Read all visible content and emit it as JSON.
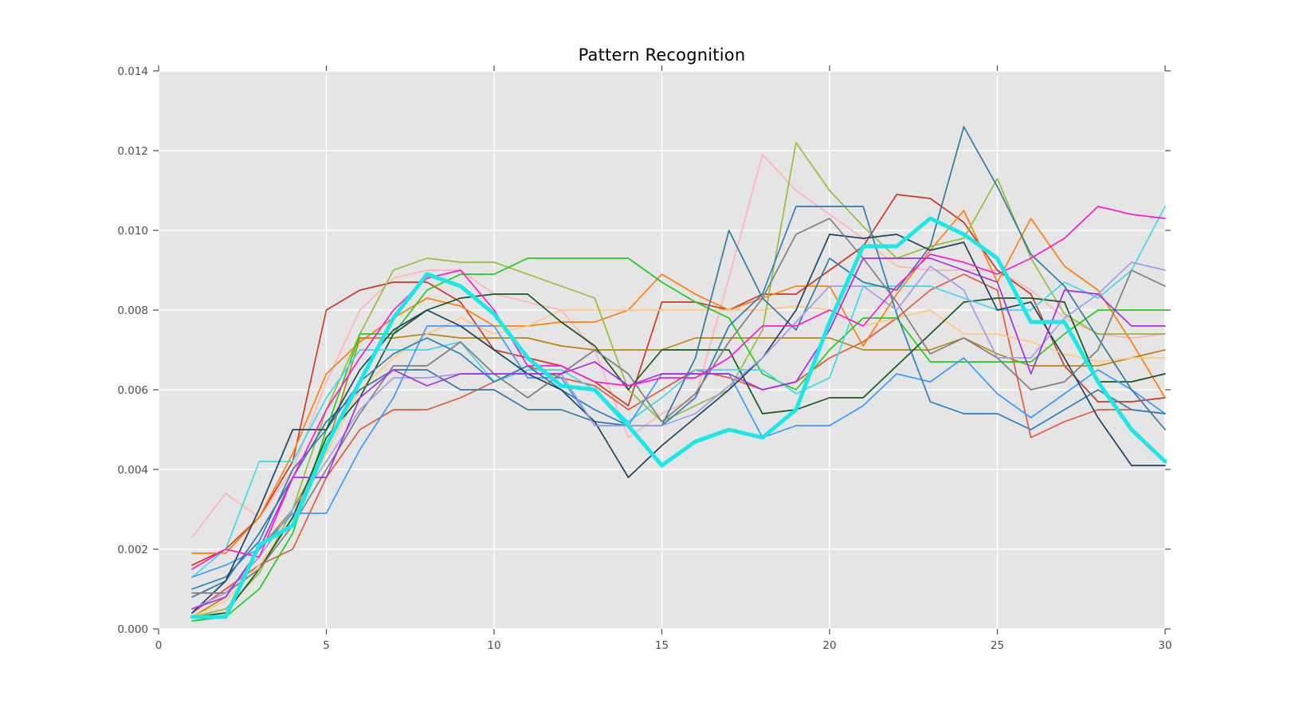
{
  "chart_data": {
    "type": "line",
    "title": "Pattern Recognition",
    "xlabel": "",
    "ylabel": "",
    "xlim": [
      0,
      30
    ],
    "ylim": [
      0,
      0.014
    ],
    "x_ticks": [
      0,
      5,
      10,
      15,
      20,
      25,
      30
    ],
    "x_tick_labels": [
      "0",
      "5",
      "10",
      "15",
      "20",
      "25",
      "30"
    ],
    "y_ticks": [
      0,
      0.002,
      0.004,
      0.006,
      0.008,
      0.01,
      0.012,
      0.014
    ],
    "y_tick_labels": [
      "0.000",
      "0.002",
      "0.004",
      "0.006",
      "0.008",
      "0.010",
      "0.012",
      "0.014"
    ],
    "grid": true,
    "legend_position": "none",
    "plot_bg_color": "#e5e5e5",
    "grid_color": "#ffffff",
    "tick_color": "#4d4d4d",
    "x": [
      1,
      2,
      3,
      4,
      5,
      6,
      7,
      8,
      9,
      10,
      11,
      12,
      13,
      14,
      15,
      16,
      17,
      18,
      19,
      20,
      21,
      22,
      23,
      24,
      25,
      26,
      27,
      28,
      29,
      30
    ],
    "series": [
      {
        "name": "pink",
        "color": "#ffb3ba",
        "width": 1.7,
        "values": [
          0.0023,
          0.0034,
          0.0028,
          0.004,
          0.0062,
          0.008,
          0.0088,
          0.009,
          0.009,
          0.0084,
          0.0082,
          0.008,
          0.007,
          0.0048,
          0.0054,
          0.0058,
          0.0088,
          0.0119,
          0.011,
          0.0104,
          0.0098,
          0.0091,
          0.009,
          0.009,
          0.009,
          0.0085,
          0.0078,
          0.0074,
          0.0073,
          0.0074
        ]
      },
      {
        "name": "brick-red",
        "color": "#cc3927",
        "width": 1.7,
        "values": [
          0.0016,
          0.002,
          0.0028,
          0.0042,
          0.008,
          0.0085,
          0.0087,
          0.0087,
          0.0082,
          0.007,
          0.0068,
          0.0066,
          0.0062,
          0.0056,
          0.0082,
          0.0082,
          0.008,
          0.0084,
          0.0084,
          0.009,
          0.0096,
          0.0109,
          0.0108,
          0.0102,
          0.009,
          0.0084,
          0.0066,
          0.0057,
          0.0057,
          0.0058
        ]
      },
      {
        "name": "vermilion",
        "color": "#e2593f",
        "width": 1.7,
        "values": [
          0.0004,
          0.001,
          0.0016,
          0.002,
          0.0038,
          0.005,
          0.0055,
          0.0055,
          0.0058,
          0.0062,
          0.0066,
          0.0063,
          0.0061,
          0.0055,
          0.006,
          0.0065,
          0.0063,
          0.006,
          0.0062,
          0.0068,
          0.0072,
          0.0078,
          0.0085,
          0.0089,
          0.0085,
          0.0048,
          0.0052,
          0.0055,
          0.0055,
          0.0054
        ]
      },
      {
        "name": "orange",
        "color": "#ff7f0e",
        "width": 1.7,
        "values": [
          0.0019,
          0.0019,
          0.0028,
          0.0044,
          0.0064,
          0.0072,
          0.0078,
          0.0083,
          0.0081,
          0.0076,
          0.0076,
          0.0077,
          0.0077,
          0.008,
          0.0089,
          0.0084,
          0.008,
          0.0083,
          0.0086,
          0.0086,
          0.0071,
          0.0084,
          0.0095,
          0.0105,
          0.0087,
          0.0103,
          0.0091,
          0.0085,
          0.0072,
          0.0058
        ]
      },
      {
        "name": "goldenrod",
        "color": "#b8860b",
        "width": 1.7,
        "values": [
          0.0003,
          0.0008,
          0.002,
          0.003,
          0.0045,
          0.0073,
          0.0073,
          0.0074,
          0.0073,
          0.0073,
          0.0073,
          0.0071,
          0.007,
          0.007,
          0.007,
          0.0073,
          0.0073,
          0.0073,
          0.0073,
          0.0073,
          0.007,
          0.007,
          0.007,
          0.0073,
          0.0069,
          0.0066,
          0.0066,
          0.0066,
          0.0068,
          0.007
        ]
      },
      {
        "name": "khaki",
        "color": "#ffc87c",
        "width": 1.7,
        "values": [
          0.0003,
          0.0007,
          0.0016,
          0.0028,
          0.0044,
          0.006,
          0.0068,
          0.0074,
          0.0078,
          0.0074,
          0.0076,
          0.008,
          0.008,
          0.008,
          0.008,
          0.008,
          0.008,
          0.008,
          0.0081,
          0.008,
          0.0076,
          0.0078,
          0.008,
          0.0074,
          0.0074,
          0.0072,
          0.0069,
          0.0067,
          0.0068,
          0.0068
        ]
      },
      {
        "name": "olive",
        "color": "#92be3c",
        "width": 1.7,
        "values": [
          0.0003,
          0.0005,
          0.0014,
          0.003,
          0.0055,
          0.0074,
          0.009,
          0.0093,
          0.0092,
          0.0092,
          0.0089,
          0.0086,
          0.0083,
          0.006,
          0.0052,
          0.0056,
          0.006,
          0.0075,
          0.0122,
          0.011,
          0.0101,
          0.0093,
          0.0096,
          0.0098,
          0.0113,
          0.0093,
          0.0079,
          0.0074,
          0.0074,
          0.0074
        ]
      },
      {
        "name": "green",
        "color": "#21cc21",
        "width": 1.7,
        "values": [
          0.0002,
          0.0003,
          0.001,
          0.0024,
          0.005,
          0.0074,
          0.0074,
          0.0085,
          0.0089,
          0.0089,
          0.0093,
          0.0093,
          0.0093,
          0.0093,
          0.0087,
          0.0082,
          0.0078,
          0.0064,
          0.006,
          0.007,
          0.0078,
          0.0078,
          0.0067,
          0.0067,
          0.0067,
          0.0067,
          0.0074,
          0.008,
          0.008,
          0.008
        ]
      },
      {
        "name": "dark-green",
        "color": "#155a1e",
        "width": 1.7,
        "values": [
          0.0003,
          0.0004,
          0.0015,
          0.0028,
          0.0048,
          0.0058,
          0.0074,
          0.008,
          0.0083,
          0.0084,
          0.0084,
          0.0077,
          0.0071,
          0.006,
          0.007,
          0.007,
          0.007,
          0.0054,
          0.0055,
          0.0058,
          0.0058,
          0.0066,
          0.0074,
          0.0082,
          0.0083,
          0.0083,
          0.0082,
          0.0062,
          0.0062,
          0.0064
        ]
      },
      {
        "name": "turquoise",
        "color": "#3ed9e9",
        "width": 1.7,
        "values": [
          0.0013,
          0.002,
          0.0042,
          0.0042,
          0.0058,
          0.007,
          0.007,
          0.007,
          0.0072,
          0.0062,
          0.0065,
          0.0065,
          0.006,
          0.0052,
          0.0058,
          0.0065,
          0.0065,
          0.0065,
          0.0059,
          0.0063,
          0.0086,
          0.0086,
          0.0086,
          0.0083,
          0.008,
          0.008,
          0.0087,
          0.0083,
          0.009,
          0.0106
        ]
      },
      {
        "name": "dodger-blue",
        "color": "#3b9aff",
        "width": 1.7,
        "values": [
          0.0013,
          0.0016,
          0.002,
          0.0029,
          0.0029,
          0.0045,
          0.0058,
          0.0076,
          0.0076,
          0.0076,
          0.0063,
          0.0063,
          0.0051,
          0.0051,
          0.0064,
          0.0064,
          0.0064,
          0.0048,
          0.0051,
          0.0051,
          0.0056,
          0.0064,
          0.0062,
          0.0068,
          0.0059,
          0.0053,
          0.0059,
          0.0065,
          0.006,
          0.0054
        ]
      },
      {
        "name": "steel-blue",
        "color": "#2e7ebb",
        "width": 1.7,
        "values": [
          0.001,
          0.0013,
          0.0022,
          0.004,
          0.005,
          0.0062,
          0.0069,
          0.0073,
          0.0069,
          0.0062,
          0.0066,
          0.006,
          0.0055,
          0.0051,
          0.0051,
          0.0058,
          0.0076,
          0.0084,
          0.0106,
          0.0106,
          0.0106,
          0.0079,
          0.0057,
          0.0054,
          0.0054,
          0.005,
          0.0055,
          0.006,
          0.0055,
          0.0054
        ]
      },
      {
        "name": "slate-blue",
        "color": "#35789f",
        "width": 1.7,
        "values": [
          0.0008,
          0.0012,
          0.0024,
          0.0038,
          0.0052,
          0.006,
          0.0065,
          0.0065,
          0.006,
          0.006,
          0.0055,
          0.0055,
          0.0052,
          0.0051,
          0.0051,
          0.0068,
          0.01,
          0.0083,
          0.0075,
          0.0093,
          0.0087,
          0.0085,
          0.0096,
          0.0126,
          0.0111,
          0.0094,
          0.0086,
          0.0073,
          0.006,
          0.005
        ]
      },
      {
        "name": "navy",
        "color": "#1c4560",
        "width": 1.7,
        "values": [
          0.0004,
          0.0012,
          0.003,
          0.005,
          0.005,
          0.0065,
          0.0075,
          0.008,
          0.0076,
          0.007,
          0.0064,
          0.006,
          0.0052,
          0.0038,
          0.0046,
          0.0053,
          0.006,
          0.0068,
          0.008,
          0.0099,
          0.0098,
          0.0099,
          0.0095,
          0.0097,
          0.008,
          0.0082,
          0.0068,
          0.0053,
          0.0041,
          0.0041
        ]
      },
      {
        "name": "gray",
        "color": "#7f7f7f",
        "width": 1.7,
        "values": [
          0.0009,
          0.0009,
          0.0015,
          0.0026,
          0.004,
          0.0054,
          0.0066,
          0.0066,
          0.0072,
          0.0064,
          0.0058,
          0.0064,
          0.007,
          0.0064,
          0.0052,
          0.0059,
          0.0072,
          0.0083,
          0.0099,
          0.0103,
          0.0093,
          0.0082,
          0.0069,
          0.0073,
          0.0068,
          0.006,
          0.0062,
          0.007,
          0.009,
          0.0086
        ]
      },
      {
        "name": "periwinkle",
        "color": "#a09de6",
        "width": 1.7,
        "values": [
          0.0005,
          0.0009,
          0.0018,
          0.003,
          0.0042,
          0.0055,
          0.0063,
          0.0063,
          0.0064,
          0.0064,
          0.0064,
          0.0064,
          0.0051,
          0.0051,
          0.0051,
          0.0054,
          0.0061,
          0.0068,
          0.0077,
          0.0086,
          0.0086,
          0.008,
          0.0091,
          0.0085,
          0.0068,
          0.0068,
          0.0078,
          0.0084,
          0.0092,
          0.009
        ]
      },
      {
        "name": "violet",
        "color": "#a42ee8",
        "width": 1.7,
        "values": [
          0.0005,
          0.0008,
          0.002,
          0.0038,
          0.0038,
          0.0058,
          0.0065,
          0.0061,
          0.0064,
          0.0064,
          0.0064,
          0.0064,
          0.0067,
          0.0061,
          0.0064,
          0.0064,
          0.0064,
          0.006,
          0.0062,
          0.0075,
          0.0093,
          0.0093,
          0.0093,
          0.009,
          0.0087,
          0.0064,
          0.0085,
          0.0084,
          0.0076,
          0.0076
        ]
      },
      {
        "name": "magenta",
        "color": "#ff1acd",
        "width": 1.7,
        "values": [
          0.0015,
          0.002,
          0.0018,
          0.0038,
          0.0055,
          0.0068,
          0.008,
          0.0088,
          0.009,
          0.008,
          0.0066,
          0.0066,
          0.0062,
          0.0061,
          0.0063,
          0.0063,
          0.0068,
          0.0076,
          0.0076,
          0.008,
          0.0076,
          0.0086,
          0.0094,
          0.0092,
          0.0089,
          0.0093,
          0.0098,
          0.0106,
          0.0104,
          0.0103
        ]
      },
      {
        "name": "highlight-aqua",
        "color": "#1ce6e6",
        "width": 5,
        "values": [
          0.0003,
          0.0003,
          0.0021,
          0.0026,
          0.0046,
          0.0062,
          0.0078,
          0.0089,
          0.0086,
          0.0079,
          0.0068,
          0.0061,
          0.006,
          0.0051,
          0.0041,
          0.0047,
          0.005,
          0.0048,
          0.0055,
          0.0077,
          0.0096,
          0.0096,
          0.0103,
          0.0099,
          0.0093,
          0.0077,
          0.0077,
          0.0062,
          0.005,
          0.0042
        ]
      }
    ]
  }
}
